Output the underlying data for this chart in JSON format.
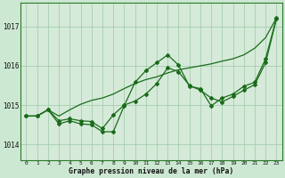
{
  "title": "Graphe pression niveau de la mer (hPa)",
  "background_color": "#cde8d2",
  "plot_bg_color": "#d5ead9",
  "grid_color": "#9ec8a8",
  "line_color": "#1a6b1a",
  "x_ticks": [
    0,
    1,
    2,
    3,
    4,
    5,
    6,
    7,
    8,
    9,
    10,
    11,
    12,
    13,
    14,
    15,
    16,
    17,
    18,
    19,
    20,
    21,
    22,
    23
  ],
  "ylim": [
    1013.6,
    1017.6
  ],
  "yticks": [
    1014,
    1015,
    1016,
    1017
  ],
  "series1": [
    1014.72,
    1014.72,
    1014.88,
    1014.6,
    1014.65,
    1014.6,
    1014.58,
    1014.4,
    1014.75,
    1015.0,
    1015.1,
    1015.28,
    1015.55,
    1015.95,
    1015.85,
    1015.5,
    1015.38,
    1015.18,
    1015.08,
    1015.22,
    1015.38,
    1015.52,
    1016.08,
    1017.2
  ],
  "series2": [
    1014.72,
    1014.72,
    1014.88,
    1014.52,
    1014.6,
    1014.52,
    1014.5,
    1014.32,
    1014.32,
    1014.98,
    1015.58,
    1015.88,
    1016.08,
    1016.28,
    1016.02,
    1015.48,
    1015.42,
    1014.98,
    1015.18,
    1015.28,
    1015.48,
    1015.58,
    1016.18,
    1017.22
  ],
  "series3": [
    1014.72,
    1014.72,
    1014.88,
    1014.72,
    1014.88,
    1015.02,
    1015.12,
    1015.18,
    1015.28,
    1015.42,
    1015.55,
    1015.65,
    1015.72,
    1015.82,
    1015.9,
    1015.95,
    1016.0,
    1016.05,
    1016.12,
    1016.18,
    1016.28,
    1016.45,
    1016.72,
    1017.22
  ]
}
